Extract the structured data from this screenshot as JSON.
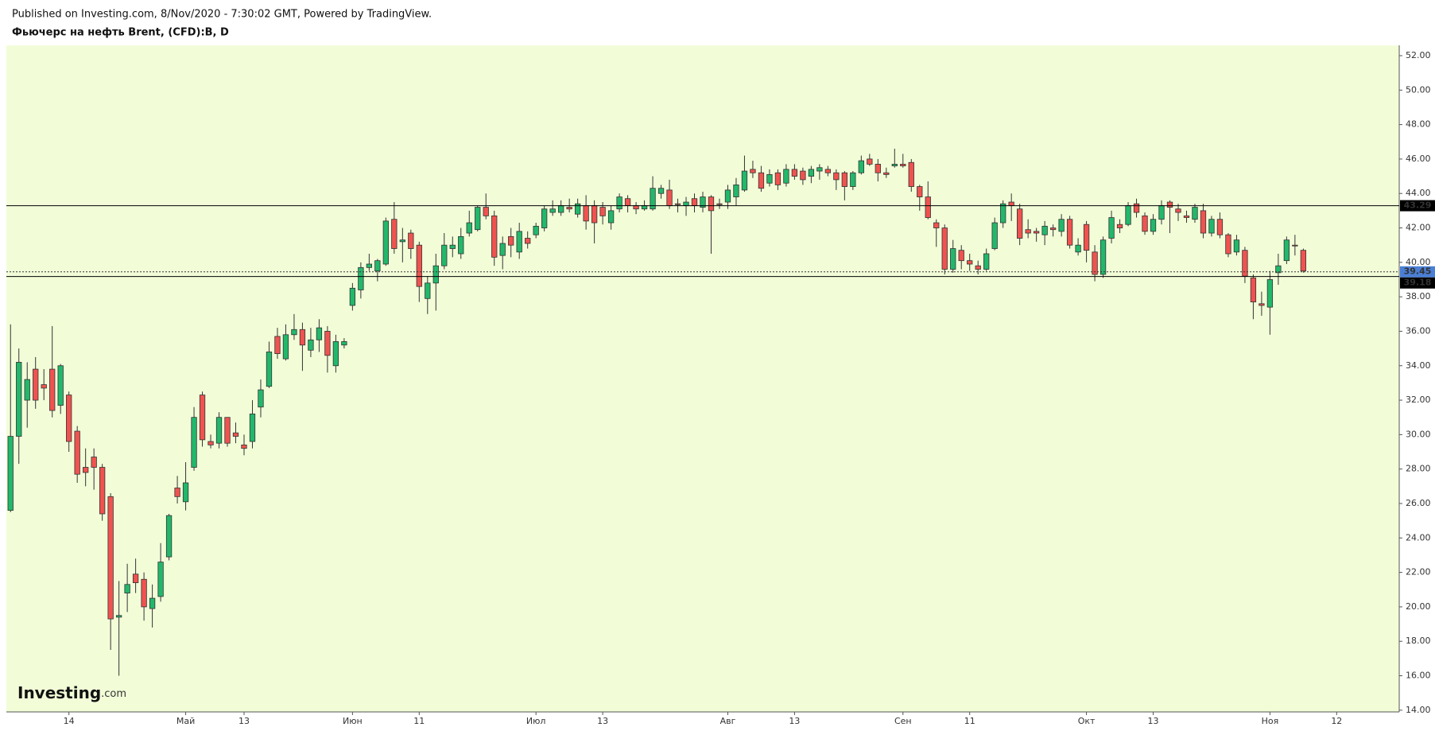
{
  "header": {
    "published": "Published on Investing.com, 8/Nov/2020 - 7:30:02 GMT, Powered by TradingView.",
    "title": "Фьючерс на нефть Brent, (CFD):B, D"
  },
  "logo": {
    "brand": "Investing",
    "suffix": ".com"
  },
  "chart_data": {
    "type": "candlestick",
    "categories": [
      null,
      null,
      null,
      null,
      null,
      null,
      null,
      "14",
      null,
      null,
      null,
      null,
      null,
      null,
      null,
      null,
      null,
      null,
      null,
      null,
      null,
      "Май",
      null,
      null,
      null,
      null,
      null,
      null,
      "13",
      null,
      null,
      null,
      null,
      null,
      null,
      null,
      null,
      null,
      null,
      null,
      null,
      "Июн",
      null,
      null,
      null,
      null,
      null,
      null,
      null,
      "11",
      null,
      null,
      null,
      null,
      null,
      null,
      null,
      null,
      null,
      null,
      null,
      null,
      null,
      "Июл",
      null,
      null,
      null,
      null,
      null,
      null,
      null,
      "13",
      null,
      null,
      null,
      null,
      null,
      null,
      null,
      null,
      null,
      null,
      null,
      null,
      null,
      null,
      "Авг",
      null,
      null,
      null,
      null,
      null,
      null,
      null,
      "13",
      null,
      null,
      null,
      null,
      null,
      null,
      null,
      null,
      null,
      null,
      null,
      null,
      "Сен",
      null,
      null,
      null,
      null,
      null,
      null,
      null,
      "11",
      null,
      null,
      null,
      null,
      null,
      null,
      null,
      null,
      null,
      null,
      null,
      null,
      null,
      "Окт",
      null,
      null,
      null,
      null,
      null,
      null,
      null,
      "13",
      null,
      null,
      null,
      null,
      null,
      null,
      null,
      null,
      null,
      null,
      null,
      null,
      null,
      "Ноя",
      null,
      null,
      null,
      null,
      null,
      null,
      null,
      "12",
      null,
      null,
      null,
      null,
      null,
      null,
      null
    ],
    "open": [
      25.6,
      29.9,
      32.0,
      33.8,
      32.9,
      33.8,
      31.7,
      32.3,
      30.2,
      28.1,
      28.7,
      28.1,
      26.4,
      19.4,
      20.8,
      21.9,
      21.6,
      19.9,
      20.6,
      22.9,
      26.9,
      26.1,
      28.1,
      32.3,
      29.6,
      29.5,
      31.0,
      30.1,
      29.4,
      29.6,
      31.6,
      32.8,
      35.7,
      34.4,
      35.8,
      36.1,
      34.9,
      35.5,
      36.0,
      34.0,
      35.2,
      37.5,
      38.4,
      39.7,
      39.5,
      39.9,
      42.5,
      41.2,
      41.7,
      41.0,
      37.9,
      38.8,
      39.8,
      40.8,
      40.5,
      41.7,
      41.9,
      43.2,
      42.7,
      40.4,
      41.5,
      40.6,
      41.4,
      41.6,
      42.0,
      42.9,
      42.9,
      43.2,
      42.8,
      43.3,
      43.3,
      43.2,
      42.3,
      43.1,
      43.7,
      43.3,
      43.1,
      43.1,
      44.0,
      44.2,
      43.4,
      43.3,
      43.7,
      43.2,
      43.8,
      43.4,
      43.5,
      43.8,
      44.2,
      45.4,
      45.2,
      44.6,
      45.2,
      44.6,
      45.4,
      45.3,
      45.0,
      45.3,
      45.4,
      45.2,
      45.2,
      44.4,
      45.2,
      46.0,
      45.7,
      45.2,
      45.6,
      45.7,
      45.8,
      44.4,
      43.8,
      42.3,
      42.0,
      39.6,
      40.7,
      40.1,
      39.8,
      39.6,
      40.8,
      42.3,
      43.5,
      43.1,
      41.9,
      41.8,
      41.6,
      42.0,
      41.8,
      42.5,
      40.6,
      42.2,
      40.6,
      39.3,
      41.4,
      42.2,
      42.2,
      43.4,
      42.7,
      41.8,
      42.5,
      43.5,
      43.1,
      42.7,
      42.5,
      43.0,
      41.7,
      42.5,
      41.6,
      40.6,
      40.7,
      39.1,
      37.6,
      37.4,
      39.4,
      40.1,
      41.0,
      40.7,
      null,
      null,
      null,
      null,
      null,
      null,
      null,
      null,
      null,
      null,
      null
    ],
    "high": [
      36.4,
      35.0,
      34.2,
      34.5,
      33.8,
      36.3,
      34.1,
      32.5,
      30.5,
      29.2,
      29.2,
      28.3,
      26.6,
      21.5,
      22.5,
      22.8,
      22.0,
      21.3,
      23.7,
      25.4,
      27.6,
      28.4,
      31.6,
      32.5,
      30.0,
      31.3,
      31.0,
      30.7,
      30.0,
      32.0,
      33.2,
      35.4,
      36.2,
      36.4,
      37.0,
      36.5,
      36.2,
      36.7,
      36.3,
      35.8,
      35.6,
      38.8,
      40.0,
      40.5,
      40.2,
      42.6,
      43.5,
      42.0,
      41.9,
      41.2,
      39.2,
      40.5,
      41.7,
      41.5,
      42.0,
      43.0,
      43.3,
      44.0,
      43.0,
      41.5,
      42.0,
      42.3,
      41.8,
      42.3,
      43.3,
      43.6,
      43.6,
      43.7,
      43.7,
      43.9,
      43.6,
      43.5,
      43.3,
      44.0,
      43.9,
      43.5,
      43.6,
      45.0,
      44.5,
      44.8,
      43.7,
      43.8,
      44.0,
      44.1,
      43.9,
      43.7,
      44.5,
      44.9,
      46.2,
      45.9,
      45.6,
      45.4,
      45.4,
      45.7,
      45.7,
      45.5,
      45.6,
      45.7,
      45.6,
      45.4,
      45.3,
      45.3,
      46.2,
      46.3,
      46.0,
      45.5,
      46.6,
      46.3,
      46.0,
      44.5,
      44.7,
      42.5,
      42.2,
      41.3,
      41.0,
      40.5,
      40.1,
      40.8,
      42.6,
      43.6,
      44.0,
      43.4,
      42.5,
      42.0,
      42.4,
      42.2,
      42.8,
      42.7,
      41.4,
      42.4,
      41.0,
      41.5,
      43.0,
      42.5,
      43.5,
      43.7,
      42.9,
      42.8,
      43.6,
      43.6,
      43.4,
      43.0,
      43.4,
      43.4,
      42.7,
      42.9,
      41.7,
      41.6,
      40.9,
      39.3,
      38.3,
      39.5,
      40.5,
      41.5,
      41.6,
      40.8,
      null,
      null,
      null,
      null,
      null,
      null,
      null,
      null,
      null,
      null,
      null
    ],
    "low": [
      25.5,
      28.3,
      30.4,
      31.5,
      32.0,
      31.0,
      31.2,
      29.0,
      27.2,
      27.0,
      26.8,
      25.0,
      17.5,
      16.0,
      19.7,
      20.8,
      19.2,
      18.8,
      20.3,
      22.7,
      26.0,
      25.6,
      27.9,
      29.3,
      29.2,
      29.2,
      29.3,
      29.5,
      28.8,
      29.2,
      31.0,
      32.7,
      34.4,
      34.3,
      35.5,
      33.7,
      34.5,
      34.8,
      33.6,
      33.6,
      35.0,
      37.2,
      37.9,
      39.5,
      38.9,
      39.8,
      40.5,
      40.0,
      40.2,
      37.7,
      37.0,
      37.2,
      39.6,
      40.3,
      40.2,
      41.5,
      41.8,
      42.5,
      39.8,
      39.6,
      40.3,
      40.2,
      40.8,
      41.4,
      41.8,
      42.7,
      42.7,
      42.9,
      42.6,
      41.9,
      41.1,
      42.2,
      41.9,
      42.9,
      42.9,
      42.8,
      43.0,
      43.0,
      43.7,
      43.1,
      42.9,
      42.7,
      42.9,
      42.9,
      40.5,
      43.1,
      43.1,
      43.3,
      44.1,
      44.9,
      44.1,
      44.4,
      44.2,
      44.4,
      44.8,
      44.5,
      44.6,
      44.8,
      45.0,
      44.2,
      43.6,
      44.2,
      45.1,
      45.6,
      44.7,
      44.9,
      45.5,
      45.5,
      44.1,
      43.0,
      42.5,
      40.9,
      39.3,
      39.4,
      39.6,
      39.5,
      39.3,
      39.5,
      40.7,
      42.0,
      42.4,
      41.0,
      41.4,
      41.2,
      41.0,
      41.5,
      41.5,
      40.8,
      40.4,
      40.0,
      38.9,
      39.1,
      41.1,
      41.7,
      42.1,
      42.6,
      41.6,
      41.6,
      42.2,
      41.7,
      42.4,
      42.3,
      42.3,
      41.4,
      41.5,
      41.4,
      40.3,
      40.4,
      38.8,
      36.7,
      36.9,
      35.8,
      38.7,
      39.9,
      40.4,
      39.4,
      null,
      null,
      null,
      null,
      null,
      null,
      null,
      null,
      null,
      null,
      null
    ],
    "close": [
      29.9,
      34.2,
      33.2,
      32.0,
      32.7,
      31.4,
      34.0,
      29.6,
      27.7,
      27.8,
      28.1,
      25.4,
      19.3,
      19.5,
      21.3,
      21.4,
      20.0,
      20.5,
      22.6,
      25.3,
      26.4,
      27.2,
      31.0,
      29.7,
      29.4,
      31.0,
      29.5,
      29.9,
      29.2,
      31.2,
      32.6,
      34.8,
      34.7,
      35.8,
      36.1,
      35.2,
      35.5,
      36.2,
      34.6,
      35.4,
      35.4,
      38.5,
      39.7,
      39.9,
      40.1,
      42.4,
      40.8,
      41.3,
      40.8,
      38.6,
      38.8,
      39.8,
      41.0,
      41.0,
      41.5,
      42.3,
      43.2,
      42.7,
      40.3,
      41.1,
      41.0,
      41.8,
      41.1,
      42.1,
      43.1,
      43.1,
      43.3,
      43.1,
      43.4,
      42.4,
      42.3,
      42.7,
      43.0,
      43.8,
      43.3,
      43.1,
      43.3,
      44.3,
      44.3,
      43.3,
      43.35,
      43.5,
      43.3,
      43.8,
      43.0,
      43.35,
      44.2,
      44.5,
      45.3,
      45.2,
      44.3,
      45.1,
      44.5,
      45.4,
      45.0,
      44.8,
      45.4,
      45.5,
      45.2,
      44.8,
      44.4,
      45.2,
      45.9,
      45.7,
      45.2,
      45.1,
      45.7,
      45.6,
      44.4,
      43.8,
      42.6,
      42.0,
      39.6,
      40.8,
      40.1,
      39.9,
      39.6,
      40.5,
      42.3,
      43.4,
      43.3,
      41.4,
      41.7,
      41.7,
      42.1,
      41.9,
      42.5,
      41.0,
      41.0,
      40.7,
      39.3,
      41.3,
      42.6,
      42.0,
      43.3,
      42.9,
      41.8,
      42.5,
      43.3,
      43.2,
      42.9,
      42.6,
      43.2,
      41.7,
      42.5,
      41.6,
      40.5,
      41.3,
      39.2,
      37.7,
      37.5,
      39.0,
      39.8,
      41.3,
      40.95,
      39.5,
      null,
      null,
      null,
      null,
      null,
      null,
      null,
      null,
      null,
      null,
      null
    ],
    "up_color": "#22b86b",
    "down_color": "#ef5350",
    "ylim": [
      13.9,
      52.6
    ],
    "yticks": [
      {
        "value": 14,
        "label": "14.00"
      },
      {
        "value": 16,
        "label": "16.00"
      },
      {
        "value": 18,
        "label": "18.00"
      },
      {
        "value": 20,
        "label": "20.00"
      },
      {
        "value": 22,
        "label": "22.00"
      },
      {
        "value": 24,
        "label": "24.00"
      },
      {
        "value": 26,
        "label": "26.00"
      },
      {
        "value": 28,
        "label": "28.00"
      },
      {
        "value": 30,
        "label": "30.00"
      },
      {
        "value": 32,
        "label": "32.00"
      },
      {
        "value": 34,
        "label": "34.00"
      },
      {
        "value": 36,
        "label": "36.00"
      },
      {
        "value": 38,
        "label": "38.00"
      },
      {
        "value": 40,
        "label": "40.00"
      },
      {
        "value": 42,
        "label": "42.00"
      },
      {
        "value": 44,
        "label": "44.00"
      },
      {
        "value": 46,
        "label": "46.00"
      },
      {
        "value": 48,
        "label": "48.00"
      },
      {
        "value": 50,
        "label": "50.00"
      },
      {
        "value": 52,
        "label": "52.00"
      }
    ],
    "price_lines": [
      {
        "value": 43.29,
        "color": "#000000"
      },
      {
        "value": 39.45,
        "color": "#4a7fd6",
        "dashed": true
      },
      {
        "value": 39.18,
        "color": "#000000"
      }
    ]
  }
}
